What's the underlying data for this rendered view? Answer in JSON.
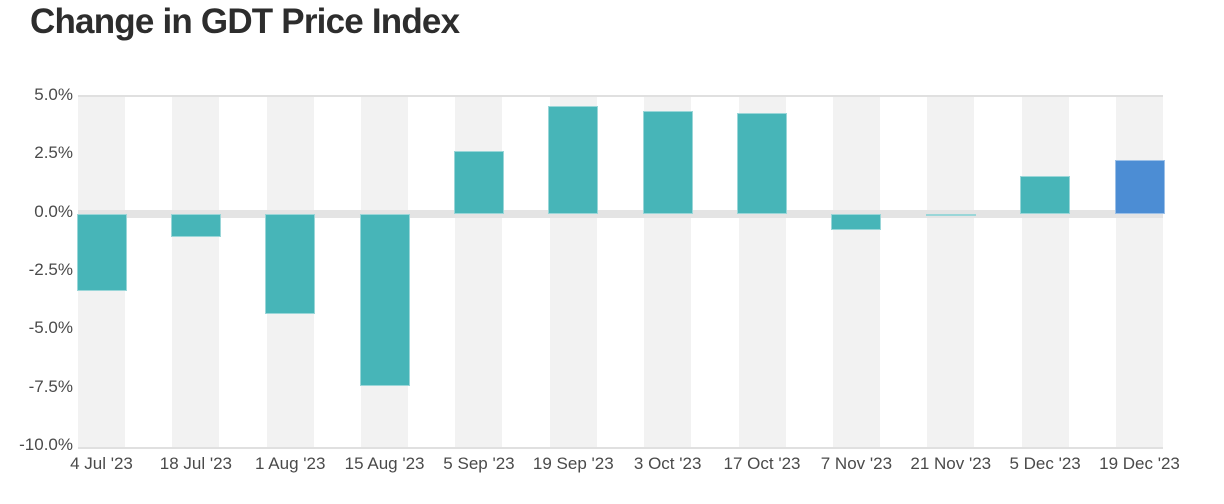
{
  "header": {
    "title": "Change in GDT Price Index"
  },
  "chart_data": {
    "type": "bar",
    "title": "Change in GDT Price Index",
    "categories": [
      "4 Jul '23",
      "18 Jul '23",
      "1 Aug '23",
      "15 Aug '23",
      "5 Sep '23",
      "19 Sep '23",
      "3 Oct '23",
      "17 Oct '23",
      "7 Nov '23",
      "21 Nov '23",
      "5 Dec '23",
      "19 Dec '23"
    ],
    "values": [
      -3.3,
      -1.0,
      -4.3,
      -7.4,
      2.7,
      4.6,
      4.4,
      4.3,
      -0.7,
      -0.1,
      1.6,
      2.3
    ],
    "unit": "%",
    "xlabel": "",
    "ylabel": "",
    "ylim": [
      -10.0,
      5.0
    ],
    "yticks": [
      5.0,
      2.5,
      0.0,
      -2.5,
      -5.0,
      -7.5,
      -10.0
    ],
    "ytick_labels": [
      "5.0%",
      "2.5%",
      "0.0%",
      "-2.5%",
      "-5.0%",
      "-7.5%",
      "-10.0%"
    ],
    "highlight_index": 11,
    "legend": "none",
    "grid": "horizontal lines at top (5.0%) and bottom (-10.0%) only, thick band at 0.0%, alternating vertical category stripes",
    "colors": {
      "bar": "#47b5b8",
      "highlight_bar": "#4c8dd4",
      "stripe": "#f2f2f2",
      "zero_band": "#e4e4e4",
      "gridline": "#e0e0e0",
      "axis_text": "#4a4a4a",
      "title_text": "#2d2d2d",
      "background": "#ffffff"
    }
  }
}
